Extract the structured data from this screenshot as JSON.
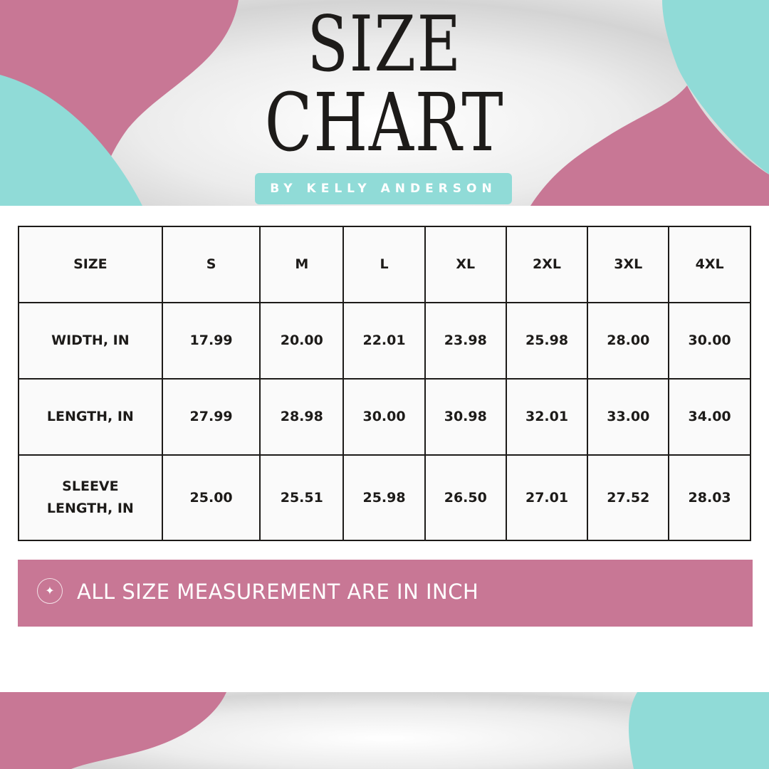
{
  "header": {
    "title_line1": "SIZE",
    "title_line2": "CHART",
    "byline": "BY KELLY ANDERSON"
  },
  "colors": {
    "pink": "#c87795",
    "teal": "#90dbd7",
    "ink": "#1d1b19"
  },
  "table": {
    "columns": [
      "SIZE",
      "S",
      "M",
      "L",
      "XL",
      "2XL",
      "3XL",
      "4XL"
    ],
    "rows": [
      {
        "label": "WIDTH, IN",
        "values": [
          "17.99",
          "20.00",
          "22.01",
          "23.98",
          "25.98",
          "28.00",
          "30.00"
        ]
      },
      {
        "label": "LENGTH, IN",
        "values": [
          "27.99",
          "28.98",
          "30.00",
          "30.98",
          "32.01",
          "33.00",
          "34.00"
        ]
      },
      {
        "label": "SLEEVE LENGTH, IN",
        "values": [
          "25.00",
          "25.51",
          "25.98",
          "26.50",
          "27.01",
          "27.52",
          "28.03"
        ]
      }
    ]
  },
  "note": {
    "icon": "sparkle-icon",
    "text": "ALL SIZE MEASUREMENT ARE IN INCH"
  }
}
